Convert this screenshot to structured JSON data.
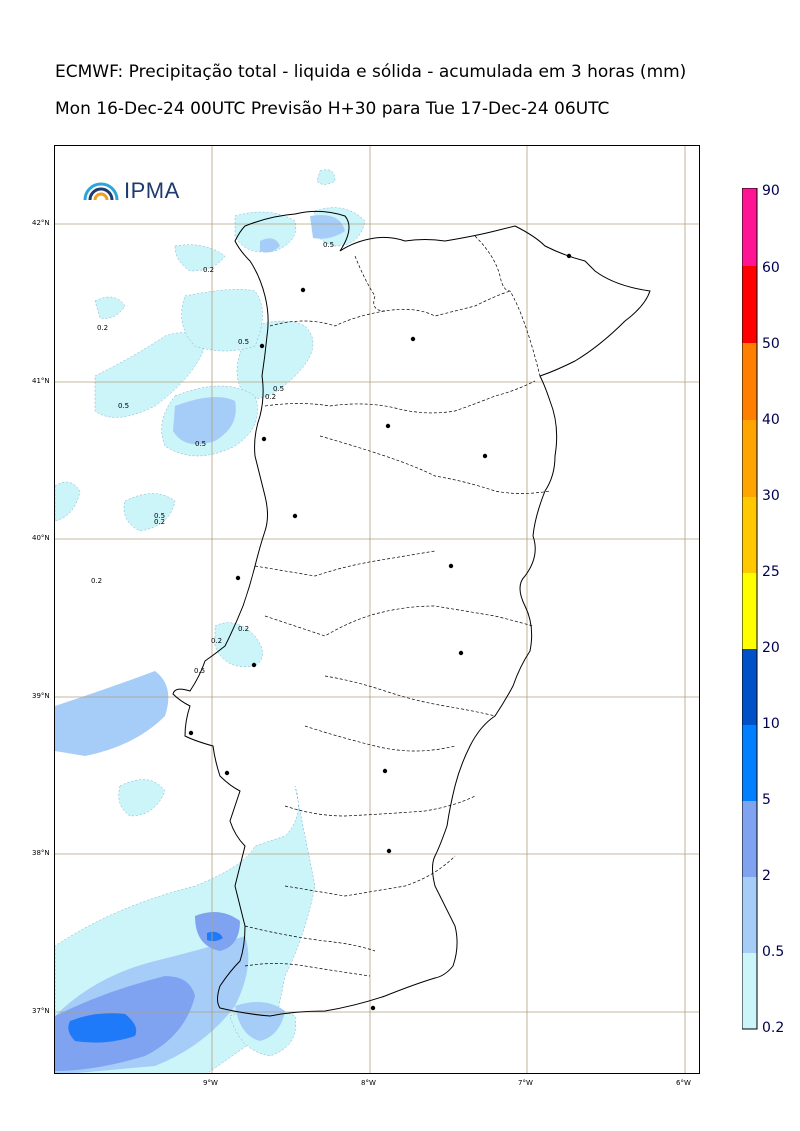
{
  "title": {
    "line1": "ECMWF: Precipitação total - liquida e sólida - acumulada em 3 horas (mm)",
    "line2": "Mon 16-Dec-24 00UTC Previsão H+30 para Tue 17-Dec-24 06UTC"
  },
  "logo": {
    "text": "IPMA",
    "icon": "rainbow-arc-icon"
  },
  "axes": {
    "lat_labels": [
      "42°N",
      "41°N",
      "40°N",
      "39°N",
      "38°N",
      "37°N"
    ],
    "lon_labels": [
      "9°W",
      "8°W",
      "7°W",
      "6°W"
    ]
  },
  "colorbar": {
    "labels": [
      "90",
      "60",
      "50",
      "40",
      "30",
      "25",
      "20",
      "10",
      "5",
      "2",
      "0.5",
      "0.2"
    ],
    "colors": [
      "#ff1493",
      "#ff0000",
      "#ff7f00",
      "#ffa500",
      "#ffc000",
      "#ffe000",
      "#ffff00",
      "#0060d0",
      "#0080ff",
      "#7fa0ff",
      "#a0c8ff",
      "#cde8ff",
      "#d0ffff"
    ]
  },
  "contour_labels": [
    "0.2",
    "0.5"
  ],
  "colors": {
    "level_0_2": "#ccf5fa",
    "level_0_5": "#a5cdf8",
    "level_2": "#7fa3f0",
    "level_5": "#1e7af8",
    "grid": "#b0a080"
  }
}
